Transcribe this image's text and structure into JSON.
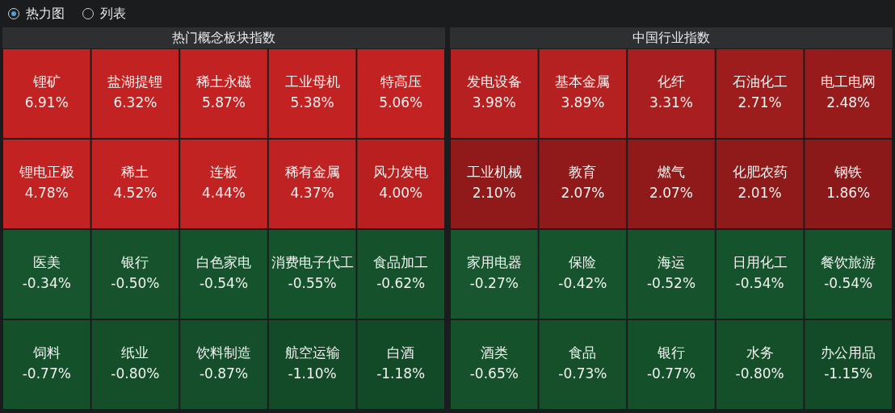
{
  "chart_data": [
    {
      "type": "other",
      "title": "热门概念板块指数",
      "annotations": [
        "热力图",
        "列表"
      ],
      "categories": [
        "锂矿",
        "盐湖提锂",
        "稀土永磁",
        "工业母机",
        "特高压",
        "锂电正极",
        "稀土",
        "连板",
        "稀有金属",
        "风力发电",
        "医美",
        "银行",
        "白色家电",
        "消费电子代工",
        "食品加工",
        "饲料",
        "纸业",
        "饮料制造",
        "航空运输",
        "白酒"
      ],
      "values": [
        6.91,
        6.32,
        5.87,
        5.38,
        5.06,
        4.78,
        4.52,
        4.44,
        4.37,
        4.0,
        -0.34,
        -0.5,
        -0.54,
        -0.55,
        -0.62,
        -0.77,
        -0.8,
        -0.87,
        -1.1,
        -1.18
      ],
      "value_labels": [
        "6.91%",
        "6.32%",
        "5.87%",
        "5.38%",
        "5.06%",
        "4.78%",
        "4.52%",
        "4.44%",
        "4.37%",
        "4.00%",
        "-0.34%",
        "-0.50%",
        "-0.54%",
        "-0.55%",
        "-0.62%",
        "-0.77%",
        "-0.80%",
        "-0.87%",
        "-1.10%",
        "-1.18%"
      ]
    },
    {
      "type": "other",
      "title": "中国行业指数",
      "categories": [
        "发电设备",
        "基本金属",
        "化纤",
        "石油化工",
        "电工电网",
        "工业机械",
        "教育",
        "燃气",
        "化肥农药",
        "钢铁",
        "家用电器",
        "保险",
        "海运",
        "日用化工",
        "餐饮旅游",
        "酒类",
        "食品",
        "银行",
        "水务",
        "办公用品"
      ],
      "values": [
        3.98,
        3.89,
        3.31,
        2.71,
        2.48,
        2.1,
        2.07,
        2.07,
        2.01,
        1.86,
        -0.27,
        -0.42,
        -0.52,
        -0.54,
        -0.54,
        -0.65,
        -0.73,
        -0.77,
        -0.8,
        -1.15
      ],
      "value_labels": [
        "3.98%",
        "3.89%",
        "3.31%",
        "2.71%",
        "2.48%",
        "2.10%",
        "2.07%",
        "2.07%",
        "2.01%",
        "1.86%",
        "-0.27%",
        "-0.42%",
        "-0.52%",
        "-0.54%",
        "-0.54%",
        "-0.65%",
        "-0.73%",
        "-0.77%",
        "-0.80%",
        "-1.15%"
      ]
    }
  ]
}
